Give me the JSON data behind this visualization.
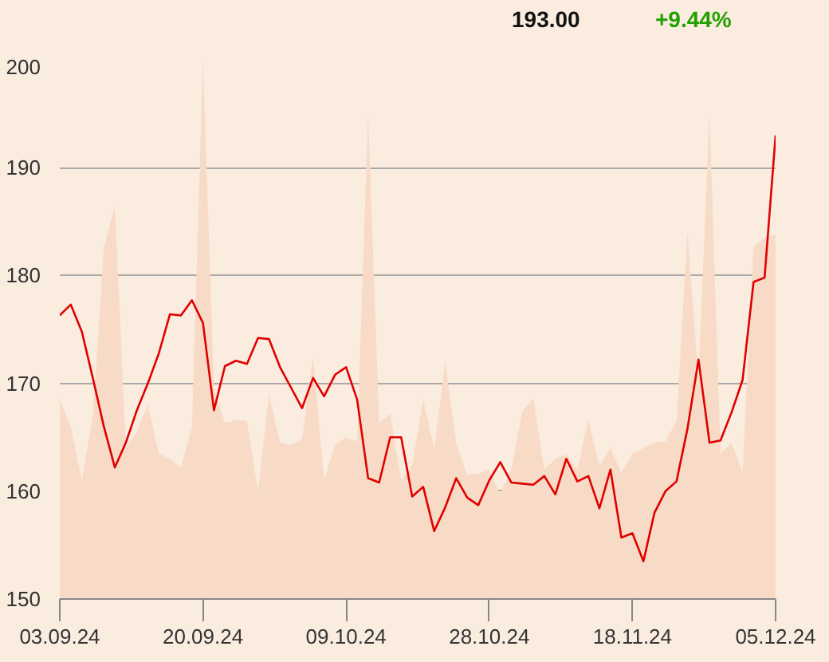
{
  "chart_data": {
    "type": "line",
    "annotations": [
      "193.00",
      "+9.44%"
    ],
    "categories": [
      "03.09.24",
      null,
      null,
      null,
      null,
      null,
      null,
      null,
      null,
      null,
      null,
      null,
      null,
      "20.09.24",
      null,
      null,
      null,
      null,
      null,
      null,
      null,
      null,
      null,
      null,
      null,
      null,
      "09.10.24",
      null,
      null,
      null,
      null,
      null,
      null,
      null,
      null,
      null,
      null,
      null,
      null,
      "28.10.24",
      null,
      null,
      null,
      null,
      null,
      null,
      null,
      null,
      null,
      null,
      null,
      null,
      "18.11.24",
      null,
      null,
      null,
      null,
      null,
      null,
      null,
      null,
      null,
      null,
      null,
      null,
      "05.12.24"
    ],
    "series": [
      {
        "type": "area",
        "color": "#f7dbc6",
        "values": [
          168.5,
          166,
          161,
          167,
          182.5,
          186.5,
          164,
          165.5,
          168,
          163.5,
          163,
          162.2,
          166,
          200,
          169.5,
          166.3,
          166.6,
          166.5,
          160,
          169,
          164.5,
          164.3,
          164.8,
          172.5,
          161,
          164.3,
          165,
          164.6,
          195,
          166.3,
          167.2,
          161,
          162.5,
          168.5,
          164,
          172,
          164.4,
          161.5,
          161.6,
          162,
          159.7,
          162,
          167.4,
          168.6,
          162,
          163,
          163.4,
          162,
          166.7,
          162.3,
          164,
          161.7,
          163.5,
          164,
          164.5,
          164.6,
          166.5,
          184,
          170.5,
          195,
          163.5,
          164.5,
          161.7,
          182.7,
          183.5,
          183.8
        ]
      },
      {
        "color": "#e00000",
        "values": [
          176.3,
          177.3,
          174.8,
          170.5,
          166,
          162.2,
          164.5,
          167.5,
          170,
          172.8,
          176.4,
          176.3,
          177.7,
          175.6,
          167.5,
          171.6,
          172.1,
          171.8,
          174.2,
          174.1,
          171.5,
          169.6,
          167.7,
          170.5,
          168.8,
          170.8,
          171.5,
          168.5,
          161.2,
          160.8,
          165,
          165,
          159.5,
          160.4,
          156.3,
          158.5,
          161.2,
          159.4,
          158.7,
          161,
          162.7,
          160.8,
          160.7,
          160.6,
          161.4,
          159.7,
          163,
          160.9,
          161.4,
          158.4,
          162,
          155.7,
          156.1,
          153.5,
          158,
          160,
          160.9,
          165.8,
          172.2,
          164.5,
          164.7,
          167.3,
          170.3,
          179.4,
          179.8,
          193
        ]
      }
    ],
    "ylim": [
      150,
      200
    ],
    "yticks": [
      150,
      160,
      170,
      180,
      190,
      200
    ],
    "grid": "y",
    "marker": "none",
    "line_style": "solid"
  }
}
